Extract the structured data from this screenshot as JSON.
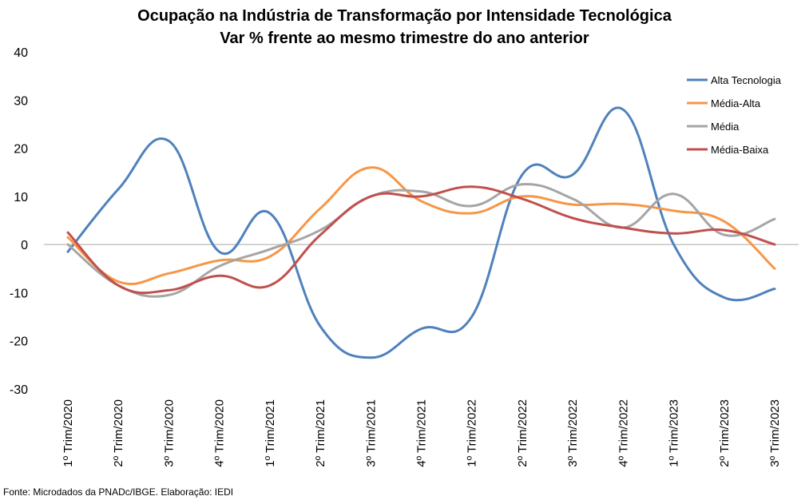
{
  "chart_data": {
    "type": "line",
    "title": "Ocupação na Indústria de Transformação por Intensidade Tecnológica",
    "subtitle": "Var % frente ao mesmo trimestre do ano anterior",
    "xlabel": "",
    "ylabel": "",
    "ylim": [
      -30,
      40
    ],
    "yticks": [
      "40",
      "30",
      "20",
      "10",
      "0",
      "-10",
      "-20",
      "-30"
    ],
    "grid": false,
    "legend_position": "top-right",
    "categories": [
      "1º Trim/2020",
      "2º Trim/2020",
      "3º Trim/2020",
      "4º Trim/2020",
      "1º Trim/2021",
      "2º Trim/2021",
      "3º Trim/2021",
      "4º Trim/2021",
      "1º Trim/2022",
      "2º Trim/2022",
      "3º Trim/2022",
      "4º Trim/2022",
      "1º Trim/2023",
      "2º Trim/2023",
      "3º Trim/2023"
    ],
    "series": [
      {
        "name": "Alta Tecnologia",
        "color": "#4F81BD",
        "values": [
          -1.5,
          11.5,
          21.5,
          -1.5,
          6.5,
          -17,
          -23.5,
          -17.5,
          -15,
          14.5,
          14.5,
          28,
          0,
          -11,
          -9.2
        ]
      },
      {
        "name": "Média-Alta",
        "color": "#F79646",
        "values": [
          1.5,
          -7.7,
          -6.0,
          -3.3,
          -2.5,
          7.5,
          16.0,
          9.0,
          6.5,
          10.0,
          8.3,
          8.4,
          7.0,
          4.8,
          -5.0
        ]
      },
      {
        "name": "Média",
        "color": "#A5A5A5",
        "values": [
          0,
          -8.5,
          -10.5,
          -4.5,
          -1.0,
          3.0,
          10.0,
          11.0,
          8.0,
          12.5,
          9.5,
          3.5,
          10.5,
          2.0,
          5.3
        ]
      },
      {
        "name": "Média-Baixa",
        "color": "#C0504D",
        "values": [
          2.5,
          -8.5,
          -9.5,
          -6.5,
          -8.5,
          2.0,
          10.0,
          10.0,
          12.0,
          9.5,
          5.5,
          3.5,
          2.3,
          3.0,
          0
        ]
      }
    ]
  },
  "source": "Fonte: Microdados da PNADc/IBGE. Elaboração: IEDI"
}
